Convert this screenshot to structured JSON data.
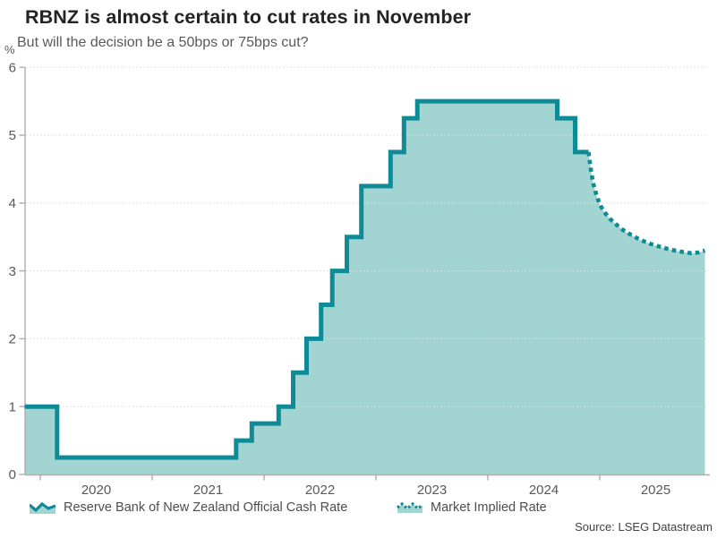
{
  "header": {
    "title": "RBNZ is almost certain to cut rates in November",
    "subtitle": "But will the decision be a 50bps or 75bps cut?"
  },
  "legend": [
    {
      "label": "Reserve Bank of New Zealand Official Cash Rate",
      "style": "solid-step-area"
    },
    {
      "label": "Market Implied Rate",
      "style": "dotted-line"
    }
  ],
  "source": "Source: LSEG Datastream",
  "chart_data": {
    "type": "area",
    "title": "RBNZ is almost certain to cut rates in November",
    "subtitle": "But will the decision be a 50bps or 75bps cut?",
    "xlabel": "",
    "ylabel": "%",
    "ylim": [
      0,
      6
    ],
    "yticks": [
      0,
      1,
      2,
      3,
      4,
      5,
      6
    ],
    "xticks": [
      2020,
      2021,
      2022,
      2023,
      2024,
      2025
    ],
    "xtick_labels": [
      "2020",
      "2021",
      "2022",
      "2023",
      "2024",
      "2025"
    ],
    "x_start": 2019.86,
    "x_end": 2025.98,
    "grid": "horizontal-dotted",
    "legend_position": "bottom",
    "colors": {
      "line": "#0e8b96",
      "fill": "#a2d5d2",
      "grid": "#d9d9d9",
      "axis": "#adadad",
      "tick_text": "#595959"
    },
    "series": [
      {
        "name": "Reserve Bank of New Zealand Official Cash Rate",
        "style": "step-solid",
        "points": [
          [
            2019.86,
            1.0
          ],
          [
            2020.15,
            0.25
          ],
          [
            2021.75,
            0.5
          ],
          [
            2021.89,
            0.75
          ],
          [
            2022.13,
            1.0
          ],
          [
            2022.26,
            1.5
          ],
          [
            2022.38,
            2.0
          ],
          [
            2022.51,
            2.5
          ],
          [
            2022.61,
            3.0
          ],
          [
            2022.74,
            3.5
          ],
          [
            2022.87,
            4.25
          ],
          [
            2023.13,
            4.75
          ],
          [
            2023.25,
            5.25
          ],
          [
            2023.37,
            5.5
          ],
          [
            2024.62,
            5.25
          ],
          [
            2024.78,
            4.75
          ],
          [
            2024.9,
            4.75
          ]
        ]
      },
      {
        "name": "Market Implied Rate",
        "style": "dotted",
        "points": [
          [
            2024.9,
            4.75
          ],
          [
            2024.92,
            4.5
          ],
          [
            2024.94,
            4.3
          ],
          [
            2024.97,
            4.12
          ],
          [
            2025.0,
            3.98
          ],
          [
            2025.04,
            3.87
          ],
          [
            2025.09,
            3.77
          ],
          [
            2025.15,
            3.68
          ],
          [
            2025.21,
            3.6
          ],
          [
            2025.28,
            3.53
          ],
          [
            2025.36,
            3.46
          ],
          [
            2025.45,
            3.4
          ],
          [
            2025.55,
            3.35
          ],
          [
            2025.64,
            3.31
          ],
          [
            2025.74,
            3.28
          ],
          [
            2025.82,
            3.26
          ],
          [
            2025.88,
            3.27
          ],
          [
            2025.94,
            3.3
          ]
        ]
      }
    ]
  }
}
